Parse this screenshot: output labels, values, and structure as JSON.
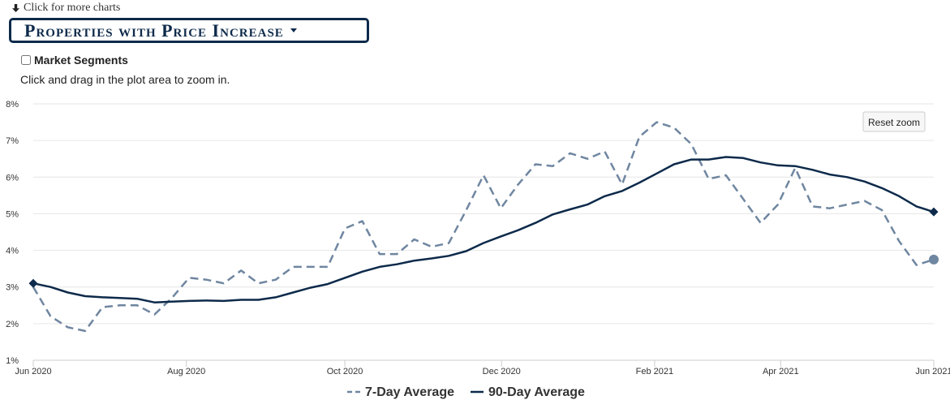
{
  "header": {
    "more_charts_label": "Click for more charts",
    "chart_selector_label": "Properties with Price Increase",
    "segments_label": "Market Segments",
    "zoom_hint": "Click and drag in the plot area to zoom in.",
    "reset_zoom_label": "Reset zoom"
  },
  "colors": {
    "series_7day": "#6f86a0",
    "series_90day": "#0d2a4a",
    "grid": "#e6e6e6",
    "axis_text": "#333333"
  },
  "icons": {
    "more_charts": "arrow-down-icon",
    "dropdown": "caret-down-icon"
  },
  "chart_data": {
    "type": "line",
    "title": "",
    "xlabel": "",
    "ylabel": "",
    "x_ticks": [
      "Jun 2020",
      "Aug 2020",
      "Oct 2020",
      "Dec 2020",
      "Feb 2021",
      "Apr 2021",
      "Jun 2021"
    ],
    "x_tick_weeks": [
      0,
      8.5,
      17.3,
      26,
      34.5,
      41.5,
      50
    ],
    "y_ticks": [
      "1%",
      "2%",
      "3%",
      "4%",
      "5%",
      "6%",
      "7%",
      "8%"
    ],
    "ylim": [
      1,
      8
    ],
    "xlim_weeks": [
      0,
      50
    ],
    "grid": true,
    "legend_position": "bottom",
    "series": [
      {
        "name": "7-Day Average",
        "style": "dashed",
        "values": [
          3.0,
          2.2,
          1.9,
          1.8,
          2.45,
          2.5,
          2.5,
          2.25,
          2.7,
          3.25,
          3.2,
          3.1,
          3.45,
          3.1,
          3.2,
          3.55,
          3.55,
          3.55,
          4.6,
          4.8,
          3.9,
          3.9,
          4.3,
          4.1,
          4.2,
          5.1,
          6.05,
          5.15,
          5.8,
          6.35,
          6.3,
          6.65,
          6.5,
          6.7,
          5.8,
          7.1,
          7.5,
          7.35,
          6.9,
          5.95,
          6.05,
          5.4,
          4.75,
          5.25,
          6.25,
          5.2,
          5.15,
          5.25,
          5.35,
          5.1,
          4.25,
          3.6,
          3.75
        ],
        "end_marker": "circle"
      },
      {
        "name": "90-Day Average",
        "style": "solid",
        "values": [
          3.1,
          3.0,
          2.85,
          2.75,
          2.72,
          2.7,
          2.68,
          2.58,
          2.6,
          2.62,
          2.63,
          2.62,
          2.65,
          2.65,
          2.72,
          2.85,
          2.98,
          3.08,
          3.25,
          3.42,
          3.55,
          3.62,
          3.72,
          3.78,
          3.85,
          3.98,
          4.2,
          4.38,
          4.55,
          4.75,
          4.98,
          5.12,
          5.25,
          5.48,
          5.62,
          5.85,
          6.1,
          6.35,
          6.48,
          6.48,
          6.55,
          6.52,
          6.4,
          6.32,
          6.3,
          6.2,
          6.07,
          6.0,
          5.88,
          5.7,
          5.48,
          5.2,
          5.05
        ],
        "start_marker": "diamond",
        "end_marker": "diamond"
      }
    ]
  }
}
